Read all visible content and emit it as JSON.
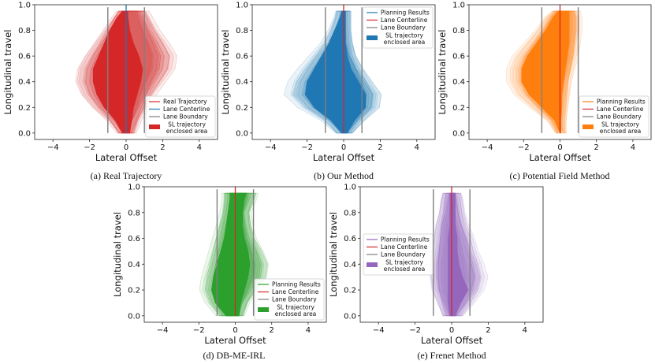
{
  "chart_data": [
    {
      "type": "area",
      "caption": "(a) Real Trajectory",
      "xlabel": "Lateral Offset",
      "ylabel": "Longitudinal travel",
      "xlim": [
        -5,
        5
      ],
      "ylim": [
        -0.05,
        1.0
      ],
      "xticks": [
        "−4",
        "−2",
        "0",
        "2",
        "4"
      ],
      "yticks": [
        "0.0",
        "0.2",
        "0.4",
        "0.6",
        "0.8",
        "1.0"
      ],
      "color": "#d62728",
      "trajectory_color": "#d62728",
      "centerline_color": "#1f77b4",
      "lane_boundaries": [
        -1,
        1
      ],
      "legend_position": "lower-right",
      "legend": [
        "Real Trajectory",
        "Lane Centerline",
        "Lane Boundary",
        "SL trajectory\nenclosed area"
      ],
      "envelope": {
        "y": [
          0.0,
          0.1,
          0.2,
          0.3,
          0.4,
          0.5,
          0.6,
          0.7,
          0.8,
          0.9,
          0.95
        ],
        "outer_left": [
          -0.3,
          -0.9,
          -1.7,
          -2.3,
          -2.6,
          -2.5,
          -2.1,
          -1.6,
          -1.1,
          -0.6,
          -0.3
        ],
        "outer_right": [
          0.3,
          0.6,
          1.0,
          1.4,
          1.9,
          2.4,
          2.5,
          2.1,
          1.6,
          1.2,
          1.0
        ],
        "core_left": [
          -0.2,
          -0.6,
          -1.2,
          -1.6,
          -1.8,
          -1.8,
          -1.5,
          -1.2,
          -0.9,
          -0.5,
          -0.2
        ],
        "core_right": [
          0.2,
          0.3,
          0.4,
          0.6,
          0.8,
          0.9,
          0.7,
          0.4,
          0.2,
          0.1,
          0.1
        ]
      }
    },
    {
      "type": "area",
      "caption": "(b) Our Method",
      "xlabel": "Lateral Offset",
      "ylabel": "Longitudinal travel",
      "xlim": [
        -5,
        5
      ],
      "ylim": [
        -0.05,
        1.0
      ],
      "xticks": [
        "−4",
        "−2",
        "0",
        "2",
        "4"
      ],
      "yticks": [
        "0.0",
        "0.2",
        "0.4",
        "0.6",
        "0.8",
        "1.0"
      ],
      "color": "#1f77b4",
      "trajectory_color": "#1f77b4",
      "centerline_color": "#d62728",
      "lane_boundaries": [
        -1,
        1
      ],
      "legend_position": "top-right",
      "legend": [
        "Planning Results",
        "Lane Centerline",
        "Lane Boundary",
        "SL trajectory\nenclosed area"
      ],
      "envelope": {
        "y": [
          0.0,
          0.1,
          0.2,
          0.3,
          0.4,
          0.5,
          0.6,
          0.7,
          0.8,
          0.9,
          0.95
        ],
        "outer_left": [
          -0.2,
          -1.0,
          -2.2,
          -2.9,
          -2.7,
          -2.2,
          -1.6,
          -1.0,
          -0.6,
          -0.3,
          -0.2
        ],
        "outer_right": [
          0.3,
          1.0,
          1.8,
          1.9,
          1.4,
          0.9,
          0.5,
          0.3,
          0.2,
          0.2,
          0.2
        ],
        "core_left": [
          -0.1,
          -0.7,
          -1.6,
          -2.1,
          -2.0,
          -1.6,
          -1.2,
          -0.8,
          -0.5,
          -0.2,
          -0.1
        ],
        "core_right": [
          0.2,
          0.6,
          1.2,
          1.2,
          0.8,
          0.4,
          0.2,
          0.1,
          0.1,
          0.1,
          0.1
        ]
      }
    },
    {
      "type": "area",
      "caption": "(c) Potential Field Method",
      "xlabel": "Lateral Offset",
      "ylabel": "Longitudinal travel",
      "xlim": [
        -5,
        5
      ],
      "ylim": [
        -0.05,
        1.0
      ],
      "xticks": [
        "−4",
        "−2",
        "0",
        "2",
        "4"
      ],
      "yticks": [
        "0.0",
        "0.2",
        "0.4",
        "0.6",
        "0.8",
        "1.0"
      ],
      "color": "#ff7f0e",
      "trajectory_color": "#ff7f0e",
      "centerline_color": "#d62728",
      "lane_boundaries": [
        -1,
        1
      ],
      "legend_position": "lower-right",
      "legend": [
        "Planning Results",
        "Lane Centerline",
        "Lane Boundary",
        "SL trajectory\nenclosed area"
      ],
      "envelope": {
        "y": [
          0.0,
          0.1,
          0.2,
          0.3,
          0.4,
          0.5,
          0.6,
          0.7,
          0.8,
          0.9,
          0.95
        ],
        "outer_left": [
          0.0,
          -0.5,
          -1.4,
          -2.2,
          -2.6,
          -2.6,
          -2.3,
          -1.7,
          -1.1,
          -0.6,
          -0.2
        ],
        "outer_right": [
          0.1,
          0.1,
          0.2,
          0.3,
          0.4,
          0.6,
          0.8,
          0.9,
          1.0,
          1.0,
          0.9
        ],
        "core_left": [
          0.0,
          -0.3,
          -1.0,
          -1.7,
          -2.1,
          -2.1,
          -1.8,
          -1.3,
          -0.8,
          -0.4,
          -0.1
        ],
        "core_right": [
          0.05,
          0.05,
          0.1,
          0.1,
          0.2,
          0.3,
          0.4,
          0.5,
          0.5,
          0.5,
          0.5
        ]
      }
    },
    {
      "type": "area",
      "caption": "(d) DB-ME-IRL",
      "xlabel": "Lateral Offset",
      "ylabel": "Longitudinal travel",
      "xlim": [
        -5,
        5
      ],
      "ylim": [
        -0.05,
        1.0
      ],
      "xticks": [
        "−4",
        "−2",
        "0",
        "2",
        "4"
      ],
      "yticks": [
        "0.0",
        "0.2",
        "0.4",
        "0.6",
        "0.8",
        "1.0"
      ],
      "color": "#2ca02c",
      "trajectory_color": "#2ca02c",
      "centerline_color": "#d62728",
      "lane_boundaries": [
        -1,
        1
      ],
      "legend_position": "lower-right",
      "legend": [
        "Planning Results",
        "Lane Centerline",
        "Lane Boundary",
        "SL trajectory\nenclosed area"
      ],
      "envelope": {
        "y": [
          0.0,
          0.1,
          0.2,
          0.3,
          0.4,
          0.5,
          0.6,
          0.7,
          0.8,
          0.9,
          0.95
        ],
        "outer_left": [
          -0.8,
          -1.4,
          -1.7,
          -1.6,
          -1.4,
          -1.2,
          -1.0,
          -0.8,
          -0.6,
          -0.5,
          -0.5
        ],
        "outer_right": [
          0.3,
          0.6,
          1.1,
          1.6,
          1.7,
          1.4,
          1.0,
          0.8,
          0.7,
          1.0,
          1.1
        ],
        "core_left": [
          -0.5,
          -1.1,
          -1.3,
          -1.2,
          -1.0,
          -0.8,
          -0.6,
          -0.5,
          -0.4,
          -0.3,
          -0.3
        ],
        "core_right": [
          0.2,
          0.3,
          0.5,
          0.7,
          0.8,
          0.7,
          0.5,
          0.4,
          0.4,
          0.5,
          0.6
        ]
      }
    },
    {
      "type": "area",
      "caption": "(e) Frenet Method",
      "xlabel": "Lateral Offset",
      "ylabel": "Longitudinal travel",
      "xlim": [
        -5,
        5
      ],
      "ylim": [
        -0.05,
        1.0
      ],
      "xticks": [
        "−4",
        "−2",
        "0",
        "2",
        "4"
      ],
      "yticks": [
        "0.0",
        "0.2",
        "0.4",
        "0.6",
        "0.8",
        "1.0"
      ],
      "color": "#9467bd",
      "trajectory_color": "#9467bd",
      "centerline_color": "#d62728",
      "lane_boundaries": [
        -1,
        1
      ],
      "legend_position": "center-left",
      "legend": [
        "Planning Results",
        "Lane Centerline",
        "Lane Boundary",
        "SL trajectory\nenclosed area"
      ],
      "envelope": {
        "y": [
          0.0,
          0.1,
          0.2,
          0.3,
          0.4,
          0.5,
          0.6,
          0.7,
          0.8,
          0.9,
          0.95
        ],
        "outer_left": [
          -0.3,
          -0.6,
          -0.9,
          -1.0,
          -1.0,
          -0.9,
          -0.8,
          -0.7,
          -0.5,
          -0.4,
          -0.3
        ],
        "outer_right": [
          0.4,
          1.0,
          1.5,
          1.7,
          1.5,
          1.2,
          1.0,
          0.7,
          0.5,
          0.4,
          0.3
        ],
        "core_left": [
          -0.1,
          -0.2,
          -0.2,
          -0.2,
          -0.2,
          -0.2,
          -0.2,
          -0.1,
          -0.1,
          -0.1,
          -0.1
        ],
        "core_right": [
          0.2,
          0.5,
          0.9,
          0.6,
          0.4,
          0.3,
          0.3,
          0.2,
          0.2,
          0.2,
          0.2
        ]
      }
    }
  ]
}
